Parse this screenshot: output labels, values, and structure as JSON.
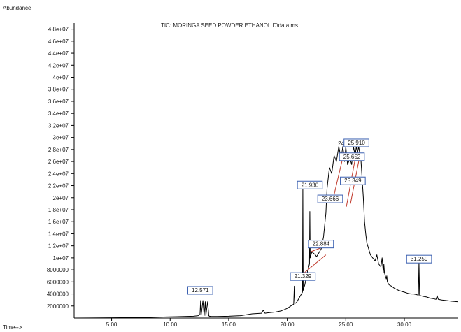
{
  "chart_data": {
    "type": "line",
    "title": "TIC: MORINGA SEED POWDER ETHANOL.D\\data.ms",
    "ylabel": "Abundance",
    "xlabel": "Time-->",
    "xlim": [
      1.8,
      34.6
    ],
    "ylim": [
      0,
      49000000
    ],
    "x_ticks": [
      "5.00",
      "10.00",
      "15.00",
      "20.00",
      "25.00",
      "30.00"
    ],
    "x_tick_values": [
      5,
      10,
      15,
      20,
      25,
      30
    ],
    "y_ticks": [
      "2000000",
      "4000000",
      "6000000",
      "8000000",
      "1e+07",
      "1.2e+07",
      "1.4e+07",
      "1.6e+07",
      "1.8e+07",
      "2e+07",
      "2.2e+07",
      "2.4e+07",
      "2.6e+07",
      "2.8e+07",
      "3e+07",
      "3.2e+07",
      "3.4e+07",
      "3.6e+07",
      "3.8e+07",
      "4e+07",
      "4.2e+07",
      "4.4e+07",
      "4.6e+07",
      "4.8e+07"
    ],
    "y_tick_values": [
      2000000,
      4000000,
      6000000,
      8000000,
      10000000,
      12000000,
      14000000,
      16000000,
      18000000,
      20000000,
      22000000,
      24000000,
      26000000,
      28000000,
      30000000,
      32000000,
      34000000,
      36000000,
      38000000,
      40000000,
      42000000,
      44000000,
      46000000,
      48000000
    ],
    "series": [
      {
        "color": "#000000",
        "x": [
          1.8,
          5.0,
          8.0,
          10.0,
          12.0,
          12.4,
          12.55,
          12.6,
          12.65,
          12.8,
          12.9,
          13.0,
          13.05,
          13.2,
          13.3,
          13.35,
          13.5,
          14.0,
          15.0,
          16.0,
          17.0,
          17.8,
          17.95,
          18.1,
          18.5,
          19.0,
          19.5,
          20.0,
          20.3,
          20.55,
          20.6,
          20.65,
          20.8,
          21.0,
          21.3,
          21.33,
          21.36,
          21.5,
          21.6,
          21.7,
          21.9,
          21.93,
          21.96,
          22.1,
          22.4,
          22.5,
          22.6,
          22.9,
          23.1,
          23.3,
          23.4,
          23.6,
          23.8,
          24.0,
          24.2,
          24.4,
          24.6,
          24.75,
          24.9,
          25.0,
          25.15,
          25.35,
          25.5,
          25.65,
          25.8,
          25.9,
          26.0,
          26.1,
          26.3,
          26.5,
          26.6,
          26.7,
          26.8,
          26.95,
          27.1,
          27.3,
          27.5,
          27.65,
          27.8,
          28.0,
          28.1,
          28.2,
          28.25,
          28.3,
          28.45,
          28.5,
          28.55,
          28.7,
          28.9,
          29.1,
          29.3,
          29.5,
          29.8,
          30.0,
          30.3,
          30.6,
          30.8,
          31.0,
          31.2,
          31.25,
          31.3,
          31.4,
          31.6,
          31.9,
          32.2,
          32.5,
          32.7,
          32.8,
          32.9,
          33.2,
          33.6,
          34.0,
          34.6
        ],
        "y": [
          0,
          50000,
          100000,
          200000,
          300000,
          400000,
          600000,
          2900000,
          500000,
          2900000,
          400000,
          2700000,
          400000,
          2700000,
          400000,
          300000,
          250000,
          250000,
          300000,
          400000,
          700000,
          800000,
          1300000,
          800000,
          900000,
          1000000,
          1200000,
          1600000,
          2000000,
          2300000,
          5300000,
          2400000,
          2600000,
          3300000,
          4300000,
          21400000,
          4600000,
          5500000,
          6500000,
          7500000,
          9000000,
          17700000,
          10000000,
          11000000,
          10500000,
          10200000,
          10500000,
          11500000,
          13500000,
          17500000,
          21500000,
          25000000,
          24000000,
          27000000,
          26000000,
          28500000,
          26500000,
          28500000,
          26000000,
          28500000,
          25500000,
          26500000,
          25500000,
          28500000,
          27000000,
          28500000,
          27500000,
          28500000,
          26000000,
          20000000,
          16000000,
          14000000,
          12500000,
          11500000,
          10500000,
          10000000,
          9500000,
          10500000,
          9000000,
          8500000,
          10000000,
          7500000,
          9000000,
          7500000,
          6500000,
          7000000,
          6000000,
          5500000,
          5300000,
          5000000,
          4800000,
          4600000,
          4400000,
          4300000,
          4100000,
          4000000,
          4000000,
          3900000,
          3800000,
          9200000,
          3800000,
          3700000,
          3600000,
          3500000,
          3300000,
          3200000,
          3100000,
          3700000,
          3100000,
          3000000,
          2900000,
          2800000,
          2700000
        ]
      }
    ],
    "fit_lines": {
      "color": "#c0392b",
      "segments": [
        {
          "x": [
            21.45,
            23.3
          ],
          "y": [
            7500000,
            10500000
          ]
        },
        {
          "x": [
            22.0,
            23.35
          ],
          "y": [
            11000000,
            12000000
          ]
        },
        {
          "x": [
            24.0,
            24.85
          ],
          "y": [
            20500000,
            27500000
          ]
        },
        {
          "x": [
            25.05,
            25.9
          ],
          "y": [
            18500000,
            27500000
          ]
        },
        {
          "x": [
            25.4,
            26.2
          ],
          "y": [
            19000000,
            27000000
          ]
        }
      ]
    },
    "peak_labels": [
      {
        "text": "12.571",
        "x": 12.571,
        "y": 4300000,
        "boxed": true
      },
      {
        "text": "21.329",
        "x": 21.329,
        "y": 6600000,
        "boxed": true
      },
      {
        "text": "21.930",
        "x": 21.93,
        "y": 21800000,
        "boxed": true
      },
      {
        "text": "22.884",
        "x": 22.884,
        "y": 12000000,
        "boxed": true
      },
      {
        "text": "23.666",
        "x": 23.666,
        "y": 19500000,
        "boxed": true
      },
      {
        "text": "24",
        "x": 24.6,
        "y": 28700000,
        "boxed": false
      },
      {
        "text": "25.910",
        "x": 25.91,
        "y": 28800000,
        "boxed": true
      },
      {
        "text": "25.652",
        "x": 25.52,
        "y": 26500000,
        "boxed": true
      },
      {
        "text": "25.349",
        "x": 25.6,
        "y": 22500000,
        "boxed": true
      },
      {
        "text": "31.259",
        "x": 31.259,
        "y": 9500000,
        "boxed": true
      }
    ]
  }
}
